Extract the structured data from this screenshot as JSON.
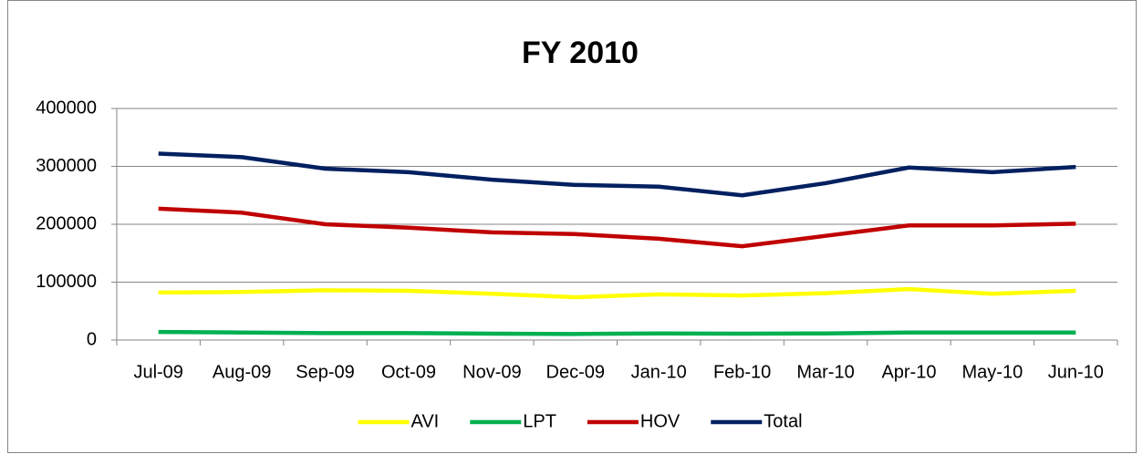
{
  "chart_data": {
    "type": "line",
    "title": "FY 2010",
    "categories": [
      "Jul-09",
      "Aug-09",
      "Sep-09",
      "Oct-09",
      "Nov-09",
      "Dec-09",
      "Jan-10",
      "Feb-10",
      "Mar-10",
      "Apr-10",
      "May-10",
      "Jun-10"
    ],
    "series": [
      {
        "name": "AVI",
        "color": "#ffff00",
        "values": [
          82000,
          83000,
          86000,
          85000,
          80000,
          74000,
          79000,
          77000,
          81000,
          88000,
          80000,
          85000
        ]
      },
      {
        "name": "LPT",
        "color": "#00b050",
        "values": [
          14000,
          13000,
          12000,
          12000,
          11000,
          10500,
          11500,
          11000,
          11500,
          13000,
          13000,
          13000
        ]
      },
      {
        "name": "HOV",
        "color": "#c00000",
        "values": [
          227000,
          220000,
          200000,
          194000,
          186000,
          183000,
          175000,
          162000,
          180000,
          198000,
          198000,
          201000
        ]
      },
      {
        "name": "Total",
        "color": "#002060",
        "values": [
          322000,
          316000,
          296000,
          290000,
          277000,
          268000,
          265000,
          250000,
          271000,
          298000,
          290000,
          299000
        ]
      }
    ],
    "ylim": [
      0,
      400000
    ],
    "yticks": [
      0,
      100000,
      200000,
      300000,
      400000
    ],
    "grid": true,
    "legend": "bottom"
  }
}
